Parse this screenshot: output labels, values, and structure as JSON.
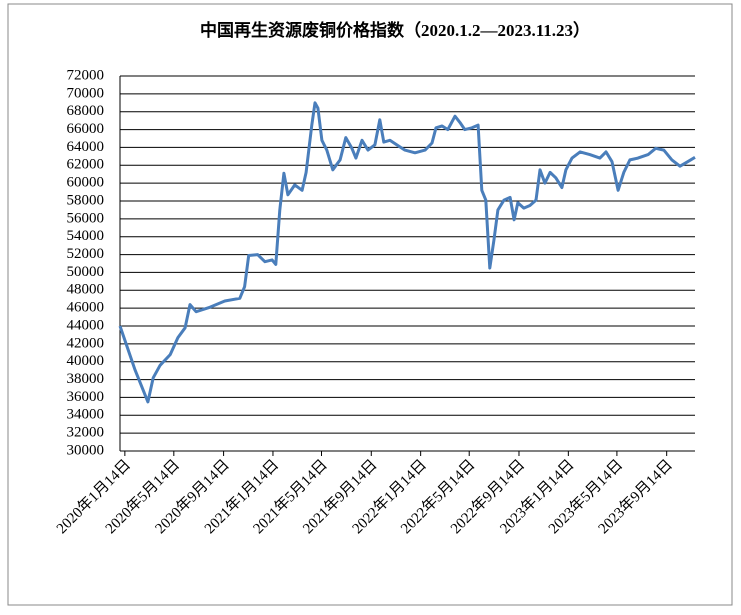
{
  "chart_data": {
    "type": "line",
    "title": "中国再生资源废铜价格指数（2020.1.2—2023.11.23）",
    "xlim": [
      "2020-01-02",
      "2023-11-23"
    ],
    "xticks": [
      {
        "value": "2020-01-14",
        "label": "2020年1月14日"
      },
      {
        "value": "2020-05-14",
        "label": "2020年5月14日"
      },
      {
        "value": "2020-09-14",
        "label": "2020年9月14日"
      },
      {
        "value": "2021-01-14",
        "label": "2021年1月14日"
      },
      {
        "value": "2021-05-14",
        "label": "2021年5月14日"
      },
      {
        "value": "2021-09-14",
        "label": "2021年9月14日"
      },
      {
        "value": "2022-01-14",
        "label": "2022年1月14日"
      },
      {
        "value": "2022-05-14",
        "label": "2022年5月14日"
      },
      {
        "value": "2022-09-14",
        "label": "2022年9月14日"
      },
      {
        "value": "2023-01-14",
        "label": "2023年1月14日"
      },
      {
        "value": "2023-05-14",
        "label": "2023年5月14日"
      },
      {
        "value": "2023-09-14",
        "label": "2023年9月14日"
      }
    ],
    "ylim": [
      30000,
      72000
    ],
    "yticks": [
      30000,
      32000,
      34000,
      36000,
      38000,
      40000,
      42000,
      44000,
      46000,
      48000,
      50000,
      52000,
      54000,
      56000,
      58000,
      60000,
      62000,
      64000,
      66000,
      68000,
      70000,
      72000
    ],
    "grid": true,
    "x": [
      "2020-01-02",
      "2020-02-08",
      "2020-03-11",
      "2020-03-24",
      "2020-04-10",
      "2020-05-05",
      "2020-05-24",
      "2020-06-11",
      "2020-06-23",
      "2020-07-08",
      "2020-08-11",
      "2020-09-17",
      "2020-10-24",
      "2020-11-05",
      "2020-11-15",
      "2020-12-07",
      "2020-12-25",
      "2021-01-12",
      "2021-01-21",
      "2021-01-31",
      "2021-02-10",
      "2021-02-20",
      "2021-03-09",
      "2021-03-27",
      "2021-04-06",
      "2021-04-20",
      "2021-04-28",
      "2021-05-05",
      "2021-05-15",
      "2021-05-27",
      "2021-06-11",
      "2021-06-29",
      "2021-07-13",
      "2021-07-28",
      "2021-08-07",
      "2021-08-22",
      "2021-09-06",
      "2021-09-23",
      "2021-10-05",
      "2021-10-15",
      "2021-10-30",
      "2021-11-19",
      "2021-12-06",
      "2021-12-31",
      "2022-01-25",
      "2022-02-11",
      "2022-02-21",
      "2022-03-08",
      "2022-03-22",
      "2022-04-09",
      "2022-04-21",
      "2022-05-03",
      "2022-05-21",
      "2022-06-05",
      "2022-06-14",
      "2022-06-24",
      "2022-07-04",
      "2022-07-14",
      "2022-07-24",
      "2022-08-08",
      "2022-08-23",
      "2022-09-02",
      "2022-09-11",
      "2022-09-26",
      "2022-10-11",
      "2022-10-26",
      "2022-11-05",
      "2022-11-17",
      "2022-11-30",
      "2022-12-14",
      "2022-12-29",
      "2023-01-08",
      "2023-01-23",
      "2023-02-12",
      "2023-03-08",
      "2023-04-02",
      "2023-04-17",
      "2023-05-02",
      "2023-05-17",
      "2023-05-31",
      "2023-06-15",
      "2023-07-05",
      "2023-07-30",
      "2023-08-18",
      "2023-09-07",
      "2023-09-27",
      "2023-10-17",
      "2023-11-05",
      "2023-11-23"
    ],
    "series": [
      {
        "name": "中国再生资源废铜价格指数",
        "color": "#4a7ebb",
        "values": [
          44000,
          39100,
          35500,
          38200,
          39600,
          40800,
          42700,
          43800,
          46400,
          45600,
          46100,
          46800,
          47100,
          48400,
          51900,
          52000,
          51200,
          51400,
          50900,
          57000,
          61100,
          58700,
          59800,
          59200,
          61200,
          66500,
          69000,
          68400,
          64800,
          63700,
          61500,
          62600,
          65100,
          63900,
          62800,
          64800,
          63700,
          64300,
          67100,
          64600,
          64800,
          64200,
          63700,
          63400,
          63700,
          64500,
          66200,
          66400,
          66000,
          67500,
          66800,
          66000,
          66200,
          66500,
          59200,
          58100,
          50500,
          53600,
          57000,
          58100,
          58400,
          55900,
          57800,
          57200,
          57500,
          58100,
          61500,
          60000,
          61200,
          60600,
          59500,
          61500,
          62800,
          63500,
          63200,
          62800,
          63500,
          62400,
          59200,
          61200,
          62600,
          62800,
          63200,
          63900,
          63700,
          62600,
          61900,
          62400,
          62900
        ]
      }
    ]
  }
}
